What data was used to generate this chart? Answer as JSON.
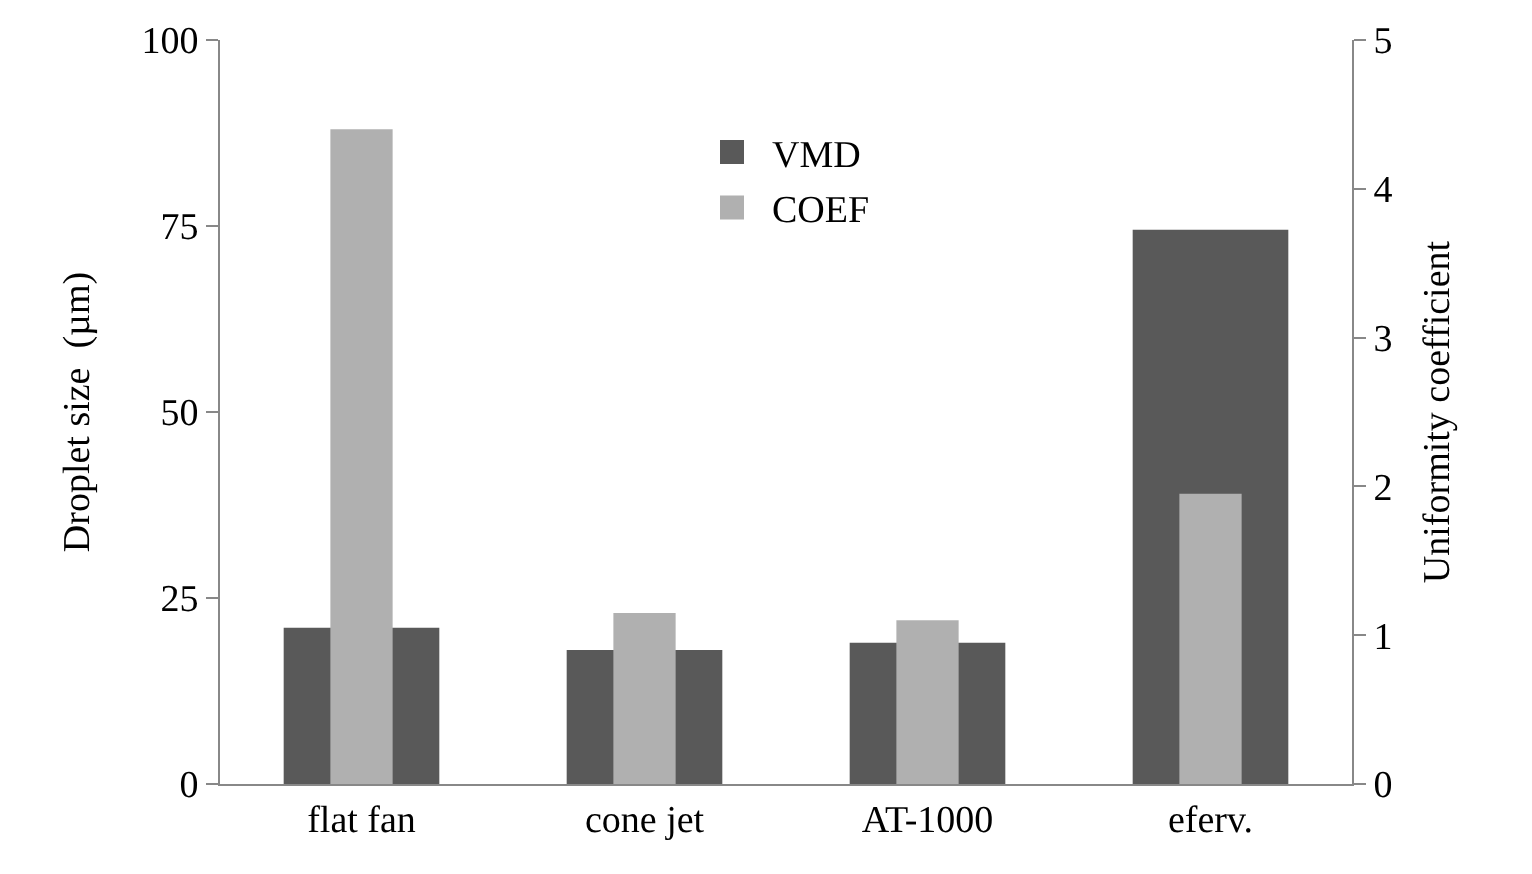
{
  "chart_data": {
    "type": "bar",
    "ylabel": "Droplet size  (µm)",
    "y2label": "Uniformity coefficient",
    "categories": [
      "flat fan",
      "cone jet",
      "AT-1000",
      "eferv."
    ],
    "series": [
      {
        "name": "VMD",
        "color": "#595959",
        "values": [
          21,
          18,
          19,
          74.5
        ]
      },
      {
        "name": "COEF",
        "color": "#b0b0b0",
        "values": [
          4.4,
          1.15,
          1.1,
          1.95
        ],
        "axis": "y2"
      }
    ],
    "ylim": [
      0,
      100
    ],
    "yticks": [
      0,
      25,
      50,
      75,
      100
    ],
    "y2lim": [
      0,
      5
    ],
    "y2ticks": [
      0,
      1,
      2,
      3,
      4,
      5
    ],
    "grid": false,
    "legend": "top"
  }
}
